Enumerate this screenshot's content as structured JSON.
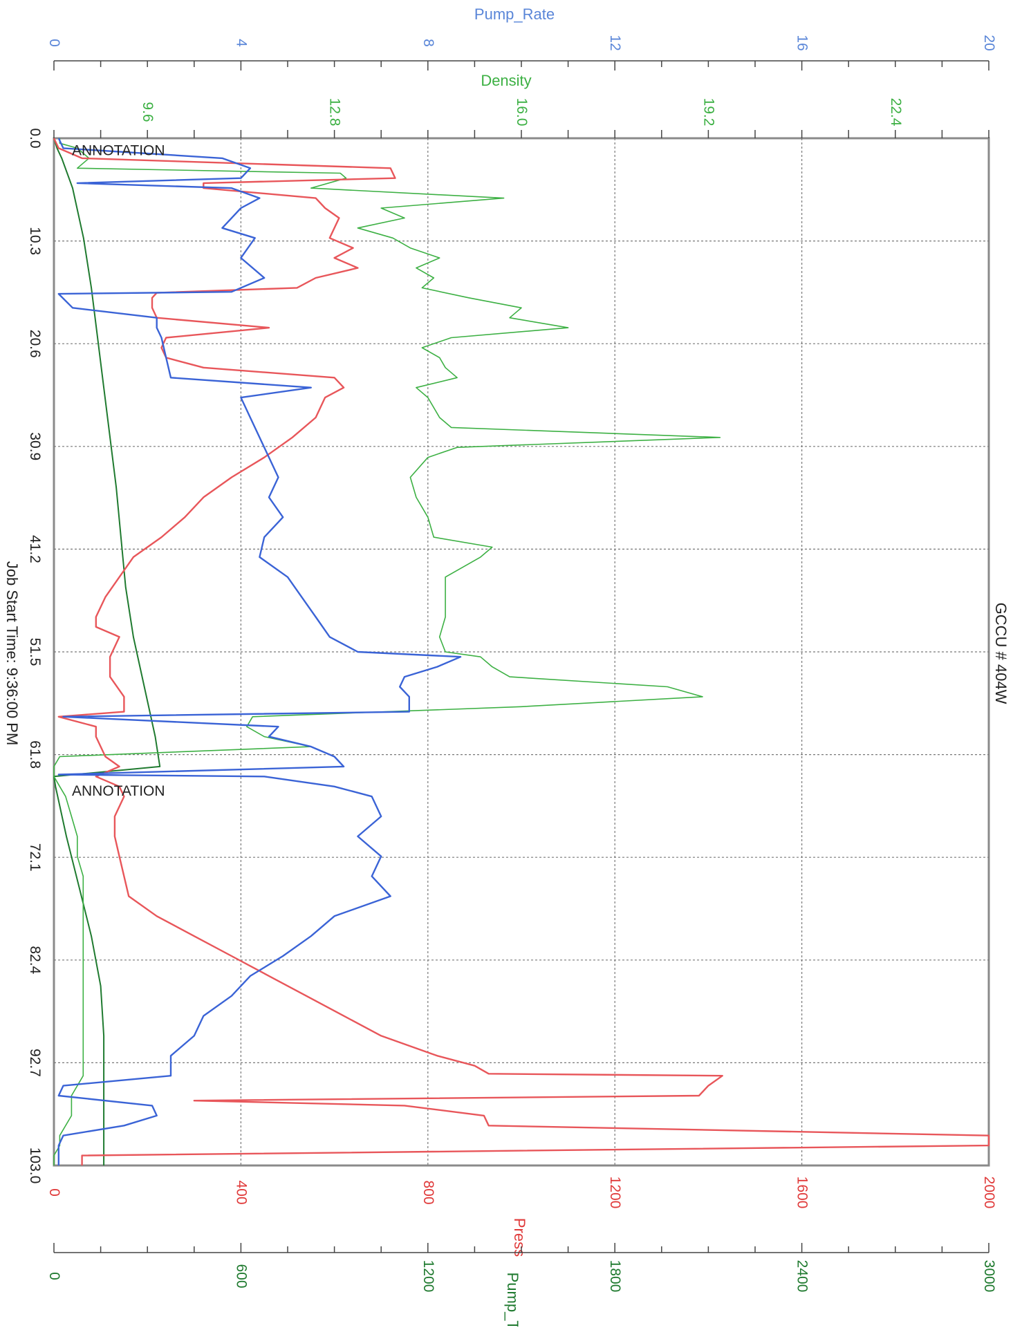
{
  "colors": {
    "press": "#e8565a",
    "pump_rate": "#3a63d6",
    "density": "#3cb043",
    "pump_ttl": "#1f7a2f",
    "axis_press": "#e03a3a",
    "axis_pump_rate": "#5a86d8",
    "axis_density": "#3cb043",
    "axis_pump_ttl": "#1f7a2f",
    "grid": "#777777",
    "text": "#222222"
  },
  "chart_data": {
    "type": "line",
    "title": "GCCU # 404W",
    "orientation": "rotated 90 degrees clockwise; time axis runs top to bottom",
    "time_axis": {
      "label": "Job Start Time: 9:36:00 PM",
      "ticks": [
        "0.0",
        "10.3",
        "20.6",
        "30.9",
        "41.2",
        "51.5",
        "61.8",
        "72.1",
        "82.4",
        "92.7",
        "103.0"
      ],
      "range": [
        0,
        103
      ]
    },
    "axes": {
      "pump_rate": {
        "label": "Pump_Rate",
        "range": [
          0,
          20
        ],
        "ticks": [
          "0",
          "4",
          "8",
          "12",
          "16",
          "20"
        ]
      },
      "density": {
        "label": "Density",
        "range": [
          8.0,
          24.0
        ],
        "ticks": [
          "9.6",
          "12.8",
          "16.0",
          "19.2",
          "22.4"
        ]
      },
      "press": {
        "label": "Press",
        "range": [
          0,
          2000
        ],
        "ticks": [
          "0",
          "400",
          "800",
          "1200",
          "1600",
          "2000"
        ]
      },
      "pump_ttl": {
        "label": "Pump_TTL",
        "range": [
          0,
          3000
        ],
        "ticks": [
          "0",
          "600",
          "1200",
          "1800",
          "2400",
          "3000"
        ]
      }
    },
    "grid": true,
    "annotations": [
      {
        "text": "ANNOTATION",
        "x": 0.6
      },
      {
        "text": "ANNOTATION",
        "x": 64.8
      }
    ],
    "series": [
      {
        "name": "Pump_Rate",
        "axis": "pump_rate",
        "x": [
          0,
          1,
          2,
          3,
          4,
          4.5,
          5,
          6,
          7,
          8,
          9,
          10,
          12,
          14,
          15.4,
          15.6,
          17,
          18,
          19,
          20,
          22,
          24,
          25,
          26,
          28,
          30,
          32,
          34,
          36,
          38,
          40,
          42,
          44,
          46,
          48,
          50,
          51.5,
          52,
          53,
          54,
          55,
          56,
          57.5,
          58,
          59,
          60,
          61,
          62,
          63,
          63.8,
          64,
          65,
          66,
          68,
          70,
          72,
          74,
          76,
          78,
          80,
          82,
          84,
          86,
          88,
          90,
          92,
          93.2,
          94,
          95,
          96,
          97,
          98,
          99,
          100,
          101,
          103
        ],
        "y": [
          0.1,
          0.2,
          3.6,
          4.2,
          4.0,
          0.5,
          3.8,
          4.4,
          4.0,
          3.8,
          3.6,
          4.3,
          4.0,
          4.5,
          3.8,
          0.1,
          0.4,
          2.2,
          2.2,
          2.3,
          2.4,
          2.5,
          5.5,
          4.0,
          4.2,
          4.4,
          4.6,
          4.8,
          4.6,
          4.9,
          4.5,
          4.4,
          5.0,
          5.3,
          5.6,
          5.9,
          6.5,
          8.7,
          8.2,
          7.5,
          7.4,
          7.6,
          7.6,
          0.2,
          4.8,
          4.6,
          5.5,
          6.0,
          6.2,
          0.1,
          4.5,
          6.0,
          6.8,
          7.0,
          6.5,
          7.0,
          6.8,
          7.2,
          6.0,
          5.5,
          4.9,
          4.2,
          3.8,
          3.2,
          3.0,
          2.5,
          2.5,
          2.5,
          0.2,
          0.1,
          2.1,
          2.2,
          1.5,
          0.2,
          0.1,
          0.1
        ]
      },
      {
        "name": "Press",
        "axis": "press",
        "x": [
          0,
          0.5,
          1,
          2,
          3,
          4,
          4.5,
          5,
          6,
          7,
          8,
          9,
          10,
          11,
          12,
          13,
          14,
          15,
          15.5,
          16,
          17,
          18,
          19,
          20,
          21,
          22,
          23,
          24,
          25,
          26,
          28,
          30,
          32,
          34,
          36,
          38,
          40,
          42,
          44,
          46,
          48,
          49,
          50,
          52,
          54,
          56,
          57.5,
          58,
          59,
          60,
          61,
          62,
          63,
          64,
          65,
          66,
          68,
          70,
          72,
          74,
          76,
          78,
          80,
          82,
          84,
          86,
          88,
          90,
          92,
          93,
          93.8,
          94,
          95,
          96,
          96.5,
          97,
          98,
          99,
          100,
          101,
          102,
          103
        ],
        "y": [
          0,
          5,
          10,
          60,
          720,
          730,
          320,
          320,
          560,
          580,
          610,
          600,
          590,
          640,
          600,
          650,
          560,
          520,
          220,
          210,
          210,
          220,
          460,
          240,
          230,
          240,
          320,
          600,
          620,
          580,
          560,
          510,
          450,
          380,
          320,
          280,
          230,
          170,
          140,
          110,
          90,
          90,
          140,
          120,
          120,
          150,
          150,
          10,
          90,
          90,
          100,
          110,
          140,
          90,
          140,
          150,
          130,
          130,
          140,
          150,
          160,
          220,
          300,
          380,
          460,
          540,
          620,
          700,
          820,
          900,
          930,
          1430,
          1400,
          1380,
          300,
          750,
          920,
          930,
          2000,
          2000,
          60,
          60
        ]
      },
      {
        "name": "Density",
        "axis": "density",
        "x": [
          0,
          0.5,
          1,
          2,
          3,
          3.5,
          4,
          5,
          6,
          7,
          8,
          9,
          10,
          11,
          12,
          13,
          14,
          15,
          16,
          17,
          18,
          19,
          20,
          21,
          22,
          23,
          24,
          25,
          26,
          28,
          29,
          30,
          31,
          32,
          34,
          36,
          38,
          40,
          41,
          42,
          44,
          46,
          48,
          50,
          51.5,
          52,
          53,
          54,
          55,
          56,
          57,
          58,
          59,
          60,
          61,
          62,
          63,
          64,
          65,
          66,
          68,
          70,
          72,
          74,
          76,
          78,
          80,
          82,
          84,
          86,
          88,
          90,
          92,
          94,
          96,
          98,
          100,
          101,
          102,
          103
        ],
        "y": [
          8.1,
          8.1,
          8.4,
          8.6,
          8.4,
          12.9,
          13.0,
          12.4,
          15.7,
          13.6,
          14.0,
          13.2,
          13.8,
          14.1,
          14.6,
          14.2,
          14.5,
          14.3,
          15.1,
          16.0,
          15.8,
          16.8,
          14.8,
          14.3,
          14.6,
          14.7,
          14.9,
          14.2,
          14.4,
          14.6,
          14.8,
          19.4,
          14.9,
          14.4,
          14.1,
          14.2,
          14.4,
          14.5,
          15.5,
          15.3,
          14.7,
          14.7,
          14.7,
          14.6,
          14.7,
          15.3,
          15.5,
          15.8,
          18.5,
          19.1,
          16.0,
          11.4,
          11.3,
          11.6,
          12.4,
          8.1,
          8.0,
          8.0,
          8.1,
          8.2,
          8.3,
          8.4,
          8.4,
          8.5,
          8.5,
          8.5,
          8.5,
          8.5,
          8.5,
          8.5,
          8.5,
          8.5,
          8.5,
          8.5,
          8.3,
          8.3,
          8.1,
          8.1,
          8.0,
          8.0
        ]
      },
      {
        "name": "Pump_TTL",
        "axis": "pump_ttl",
        "x": [
          0,
          1,
          2,
          5,
          10,
          15,
          20,
          25,
          30,
          35,
          40,
          45,
          50,
          55,
          60,
          63,
          64,
          65,
          70,
          75,
          80,
          85,
          90,
          93,
          95,
          100,
          103
        ],
        "y": [
          0,
          10,
          25,
          60,
          95,
          120,
          140,
          160,
          180,
          200,
          215,
          230,
          255,
          290,
          325,
          340,
          0,
          5,
          40,
          80,
          120,
          150,
          160,
          160,
          160,
          160,
          160
        ]
      }
    ]
  }
}
